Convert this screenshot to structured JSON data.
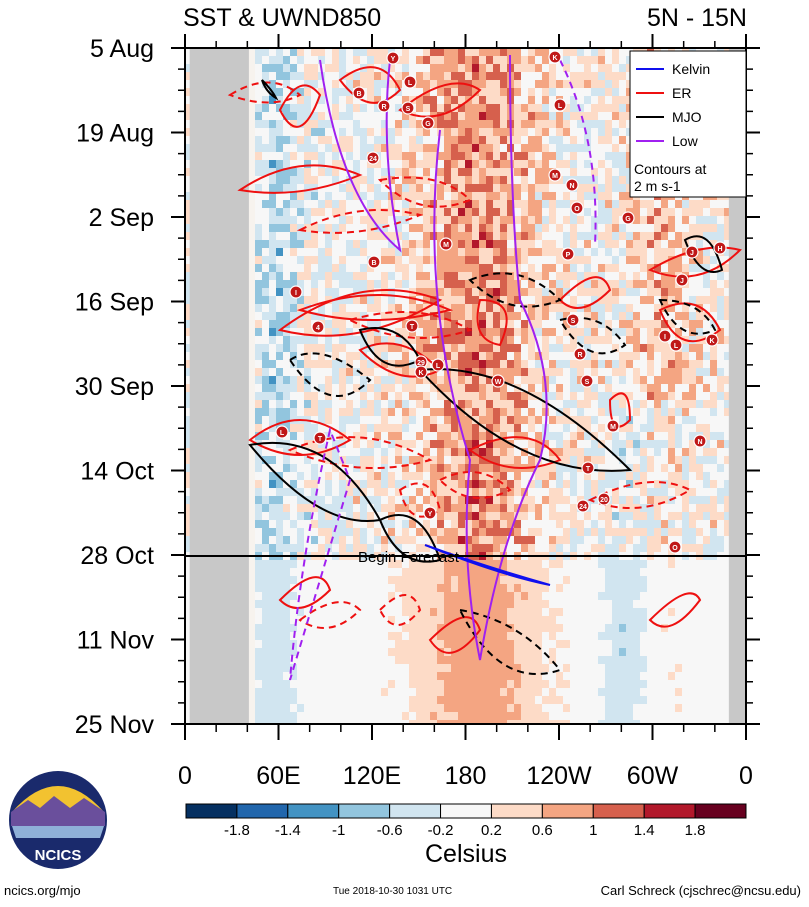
{
  "chart_data": {
    "type": "heatmap",
    "title_left": "SST & UWND850",
    "title_right": "5N - 15N",
    "y_tick_labels": [
      "5 Aug",
      "19 Aug",
      "2 Sep",
      "16 Sep",
      "30 Sep",
      "14 Oct",
      "28 Oct",
      "11 Nov",
      "25 Nov"
    ],
    "x_tick_labels": [
      "0",
      "60E",
      "120E",
      "180",
      "120W",
      "60W",
      "0"
    ],
    "xlim": [
      0,
      360
    ],
    "forecast_label": "Begin Forecast",
    "legend": {
      "entries": [
        {
          "name": "Kelvin",
          "color": "#1010ee"
        },
        {
          "name": "ER",
          "color": "#ee1010"
        },
        {
          "name": "MJO",
          "color": "#000000"
        },
        {
          "name": "Low",
          "color": "#a020f0"
        }
      ],
      "note": "Contours at\n2 m s-1",
      "note_line1": "Contours at",
      "note_line2": "2 m s-1",
      "placement": "top-right"
    },
    "colorbar": {
      "title": "Celsius",
      "tick_labels": [
        "-1.8",
        "-1.4",
        "-1",
        "-0.6",
        "-0.2",
        "0.2",
        "0.6",
        "1",
        "1.4",
        "1.8"
      ],
      "colors": [
        "#053061",
        "#2166ac",
        "#4393c3",
        "#92c5de",
        "#d1e5f0",
        "#f7f7f7",
        "#fddbc7",
        "#f4a582",
        "#d6604d",
        "#b2182b",
        "#67001f"
      ]
    },
    "storm_markers": [
      "Y",
      "L",
      "B",
      "R",
      "S",
      "G",
      "24",
      "M",
      "B",
      "I",
      "4",
      "T",
      "29",
      "L",
      "K",
      "W",
      "L",
      "T",
      "Y",
      "K",
      "L",
      "M",
      "N",
      "O",
      "P",
      "S",
      "R",
      "S",
      "M",
      "T",
      "24",
      "20",
      "N",
      "G",
      "J",
      "H",
      "J",
      "L",
      "I",
      "K",
      "O"
    ]
  },
  "footer": {
    "logo_text": "NCICS",
    "site": "ncics.org/mjo",
    "timestamp": "Tue 2018-10-30 1031 UTC",
    "credit": "Carl Schreck (cjschrec@ncsu.edu)"
  }
}
